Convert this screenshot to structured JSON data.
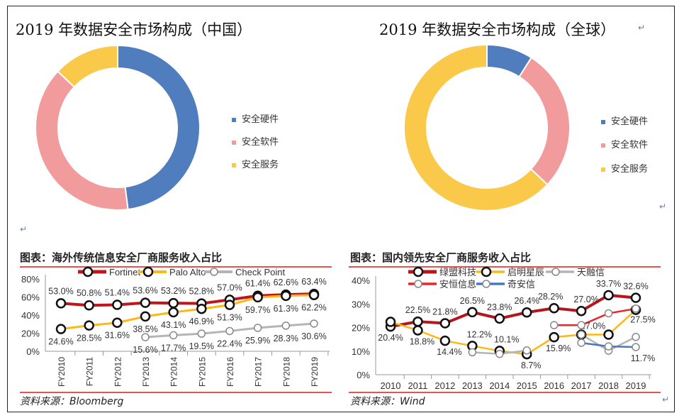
{
  "return_mark": "↵",
  "china_donut": {
    "title": "2019 年数据安全市场构成（中国）",
    "legend": [
      "安全硬件",
      "安全软件",
      "安全服务"
    ]
  },
  "global_donut": {
    "title": "2019 年数据安全市场构成（全球）",
    "legend": [
      "安全硬件",
      "安全软件",
      "安全服务"
    ]
  },
  "overseas": {
    "title": "图表：海外传统信息安全厂商服务收入占比",
    "source": "资料来源：Bloomberg"
  },
  "domestic": {
    "title": "图表：国内领先安全厂商服务收入占比",
    "source": "资料来源：Wind"
  },
  "colors": {
    "hardware": "#4f7dbd",
    "software": "#f29b9d",
    "service": "#fbc94a",
    "accent_line": "#e8534d"
  },
  "chart_data": [
    {
      "type": "pie",
      "subtype": "donut",
      "title": "2019 年数据安全市场构成（中国）",
      "categories": [
        "安全硬件",
        "安全软件",
        "安全服务"
      ],
      "values": [
        48,
        39,
        13
      ],
      "legend": "right"
    },
    {
      "type": "pie",
      "subtype": "donut",
      "title": "2019 年数据安全市场构成（全球）",
      "categories": [
        "安全硬件",
        "安全软件",
        "安全服务"
      ],
      "values": [
        9,
        28,
        63
      ],
      "legend": "right"
    },
    {
      "type": "line",
      "title": "图表：海外传统信息安全厂商服务收入占比",
      "categories": [
        "FY2010",
        "FY2011",
        "FY2012",
        "FY2013",
        "FY2014",
        "FY2015",
        "FY2016",
        "FY2017",
        "FY2018",
        "FY2019"
      ],
      "yticks": [
        "0%",
        "20%",
        "40%",
        "60%",
        "80%"
      ],
      "ylim": [
        0,
        80
      ],
      "legend": "top",
      "series": [
        {
          "name": "Fortinet",
          "color": "#c0151b",
          "values": [
            53.0,
            50.8,
            51.4,
            53.6,
            53.2,
            52.8,
            57.0,
            61.4,
            62.6,
            63.4
          ],
          "labels": [
            "53.0%",
            "50.8%",
            "51.4%",
            "53.6%",
            "53.2%",
            "52.8%",
            "57.0%",
            "61.4%",
            "62.6%",
            "63.4%"
          ]
        },
        {
          "name": "Palo Alto",
          "color": "#fbb816",
          "values": [
            24.6,
            28.5,
            31.6,
            38.5,
            43.1,
            46.9,
            51.3,
            59.7,
            61.3,
            62.2
          ],
          "labels": [
            "24.6%",
            "28.5%",
            "31.6%",
            "38.5%",
            "43.1%",
            "46.9%",
            "51.3%",
            "59.7%",
            "61.3%",
            "62.2%"
          ]
        },
        {
          "name": "Check Point",
          "color": "#b5b5b5",
          "values": [
            null,
            null,
            null,
            15.6,
            17.7,
            19.5,
            22.4,
            25.9,
            28.3,
            30.6
          ],
          "labels": [
            null,
            null,
            null,
            "15.6%",
            "17.7%",
            "19.5%",
            "22.4%",
            "25.9%",
            "28.3%",
            "30.6%"
          ]
        }
      ]
    },
    {
      "type": "line",
      "title": "图表：国内领先安全厂商服务收入占比",
      "categories": [
        "2010",
        "2011",
        "2012",
        "2013",
        "2014",
        "2015",
        "2016",
        "2017",
        "2018",
        "2019"
      ],
      "yticks": [
        "0%",
        "10%",
        "20%",
        "30%",
        "40%"
      ],
      "ylim": [
        0,
        40
      ],
      "legend": "top",
      "series": [
        {
          "name": "绿盟科技",
          "color": "#b5161c",
          "values": [
            20.4,
            22.5,
            21.8,
            26.5,
            23.8,
            26.4,
            28.2,
            27.0,
            33.7,
            32.6
          ],
          "labels": [
            "20.4%",
            "22.5%",
            "21.8%",
            "26.5%",
            "23.8%",
            "26.4%",
            "28.2%",
            "27.0%",
            "33.7%",
            "32.6%"
          ]
        },
        {
          "name": "启明星辰",
          "color": "#fbb816",
          "values": [
            22.4,
            18.8,
            14.4,
            12.2,
            10.1,
            8.7,
            15.9,
            17.0,
            17.0,
            27.5
          ],
          "labels": [
            null,
            "18.8%",
            "14.4%",
            "12.2%",
            "10.1%",
            "8.7%",
            "15.9%",
            null,
            "17.0%",
            "27.5%"
          ]
        },
        {
          "name": "天融信",
          "color": "#b5b5b5",
          "values": [
            null,
            null,
            null,
            9.5,
            8.8,
            10.3,
            null,
            17.0,
            10.2,
            16.0
          ],
          "labels": [
            null,
            null,
            null,
            null,
            null,
            null,
            null,
            null,
            null,
            null
          ]
        },
        {
          "name": "安恒信息",
          "color": "#f0222a",
          "values": [
            null,
            null,
            null,
            null,
            null,
            null,
            21.0,
            21.0,
            26.0,
            28.0
          ],
          "labels": [
            null,
            null,
            null,
            null,
            null,
            null,
            null,
            null,
            null,
            null
          ]
        },
        {
          "name": "奇安信",
          "color": "#4a78c0",
          "values": [
            null,
            null,
            null,
            null,
            null,
            null,
            null,
            13.5,
            12.0,
            11.7
          ],
          "labels": [
            null,
            null,
            null,
            null,
            null,
            null,
            null,
            null,
            null,
            "11.7%"
          ]
        }
      ]
    }
  ]
}
